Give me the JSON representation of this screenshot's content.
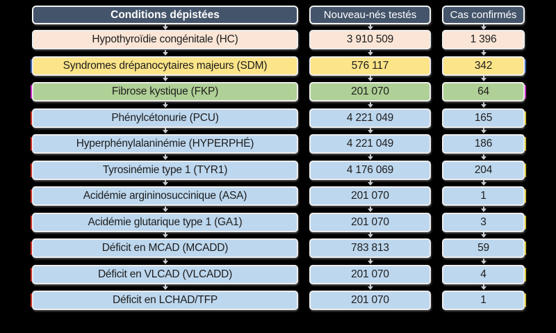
{
  "figure": {
    "background_color": "#000000",
    "header_color": "#44546A",
    "header_text_color": "#FFFFFF",
    "arrow_icon_color": "#C9CDD2",
    "category_colors": {
      "endocrine": "#FBE5D6",
      "hemoglobinopathy": "#FCE488",
      "cystic_fibrosis": "#AFD096",
      "metabolic": "#BDD7EE"
    }
  },
  "headers": [
    {
      "label": "Conditions dépistées"
    },
    {
      "label": "Nouveau-nés testés"
    },
    {
      "label": "Cas confirmés"
    }
  ],
  "rows": [
    {
      "label": "Hypothyroïdie congénitale (HC)",
      "tested": "3 910 509",
      "confirmed": "1 396",
      "color": "#FBE5D6",
      "edge_left": "",
      "edge_right": ""
    },
    {
      "label": "Syndromes drépanocytaires majeurs (SDM)",
      "tested": "576 117",
      "confirmed": "342",
      "color": "#FCE488",
      "edge_left": "#4472C4",
      "edge_right": "#4472C4"
    },
    {
      "label": "Fibrose kystique (FKP)",
      "tested": "201 070",
      "confirmed": "64",
      "color": "#AFD096",
      "edge_left": "#E833E8",
      "edge_right": "#E833E8"
    },
    {
      "label": "Phénylcétonurie (PCU)",
      "tested": "4 221 049",
      "confirmed": "165",
      "color": "#BDD7EE",
      "edge_left": "#F03A2E",
      "edge_right": "#F2E13A"
    },
    {
      "label": "Hyperphénylalaninémie (HYPERPHÉ)",
      "tested": "4 221 049",
      "confirmed": "186",
      "color": "#BDD7EE",
      "edge_left": "#F03A2E",
      "edge_right": "#F2E13A"
    },
    {
      "label": "Tyrosinémie type 1 (TYR1)",
      "tested": "4 176 069",
      "confirmed": "204",
      "color": "#BDD7EE",
      "edge_left": "#F03A2E",
      "edge_right": "#F2E13A"
    },
    {
      "label": "Acidémie argininosuccinique (ASA)",
      "tested": "201 070",
      "confirmed": "1",
      "color": "#BDD7EE",
      "edge_left": "#F03A2E",
      "edge_right": "#F2E13A"
    },
    {
      "label": "Acidémie glutarique type 1 (GA1)",
      "tested": "201 070",
      "confirmed": "3",
      "color": "#BDD7EE",
      "edge_left": "#F03A2E",
      "edge_right": "#F2E13A"
    },
    {
      "label": "Déficit en MCAD (MCADD)",
      "tested": "783 813",
      "confirmed": "59",
      "color": "#BDD7EE",
      "edge_left": "#F03A2E",
      "edge_right": "#F2E13A"
    },
    {
      "label": "Déficit en VLCAD (VLCADD)",
      "tested": "201 070",
      "confirmed": "4",
      "color": "#BDD7EE",
      "edge_left": "#F03A2E",
      "edge_right": "#F2E13A"
    },
    {
      "label": "Déficit en LCHAD/TFP",
      "tested": "201 070",
      "confirmed": "1",
      "color": "#BDD7EE",
      "edge_left": "#F03A2E",
      "edge_right": "#F2E13A"
    }
  ],
  "chart_data": {
    "type": "table",
    "columns": [
      "Conditions dépistées",
      "Nouveau-nés testés",
      "Cas confirmés"
    ],
    "rows": [
      [
        "Hypothyroïdie congénitale (HC)",
        3910509,
        1396
      ],
      [
        "Syndromes drépanocytaires majeurs (SDM)",
        576117,
        342
      ],
      [
        "Fibrose kystique (FKP)",
        201070,
        64
      ],
      [
        "Phénylcétonurie (PCU)",
        4221049,
        165
      ],
      [
        "Hyperphénylalaninémie (HYPERPHÉ)",
        4221049,
        186
      ],
      [
        "Tyrosinémie type 1 (TYR1)",
        4176069,
        204
      ],
      [
        "Acidémie argininosuccinique (ASA)",
        201070,
        1
      ],
      [
        "Acidémie glutarique type 1 (GA1)",
        201070,
        3
      ],
      [
        "Déficit en MCAD (MCADD)",
        783813,
        59
      ],
      [
        "Déficit en VLCAD (VLCADD)",
        201070,
        4
      ],
      [
        "Déficit en LCHAD/TFP",
        201070,
        1
      ]
    ]
  }
}
